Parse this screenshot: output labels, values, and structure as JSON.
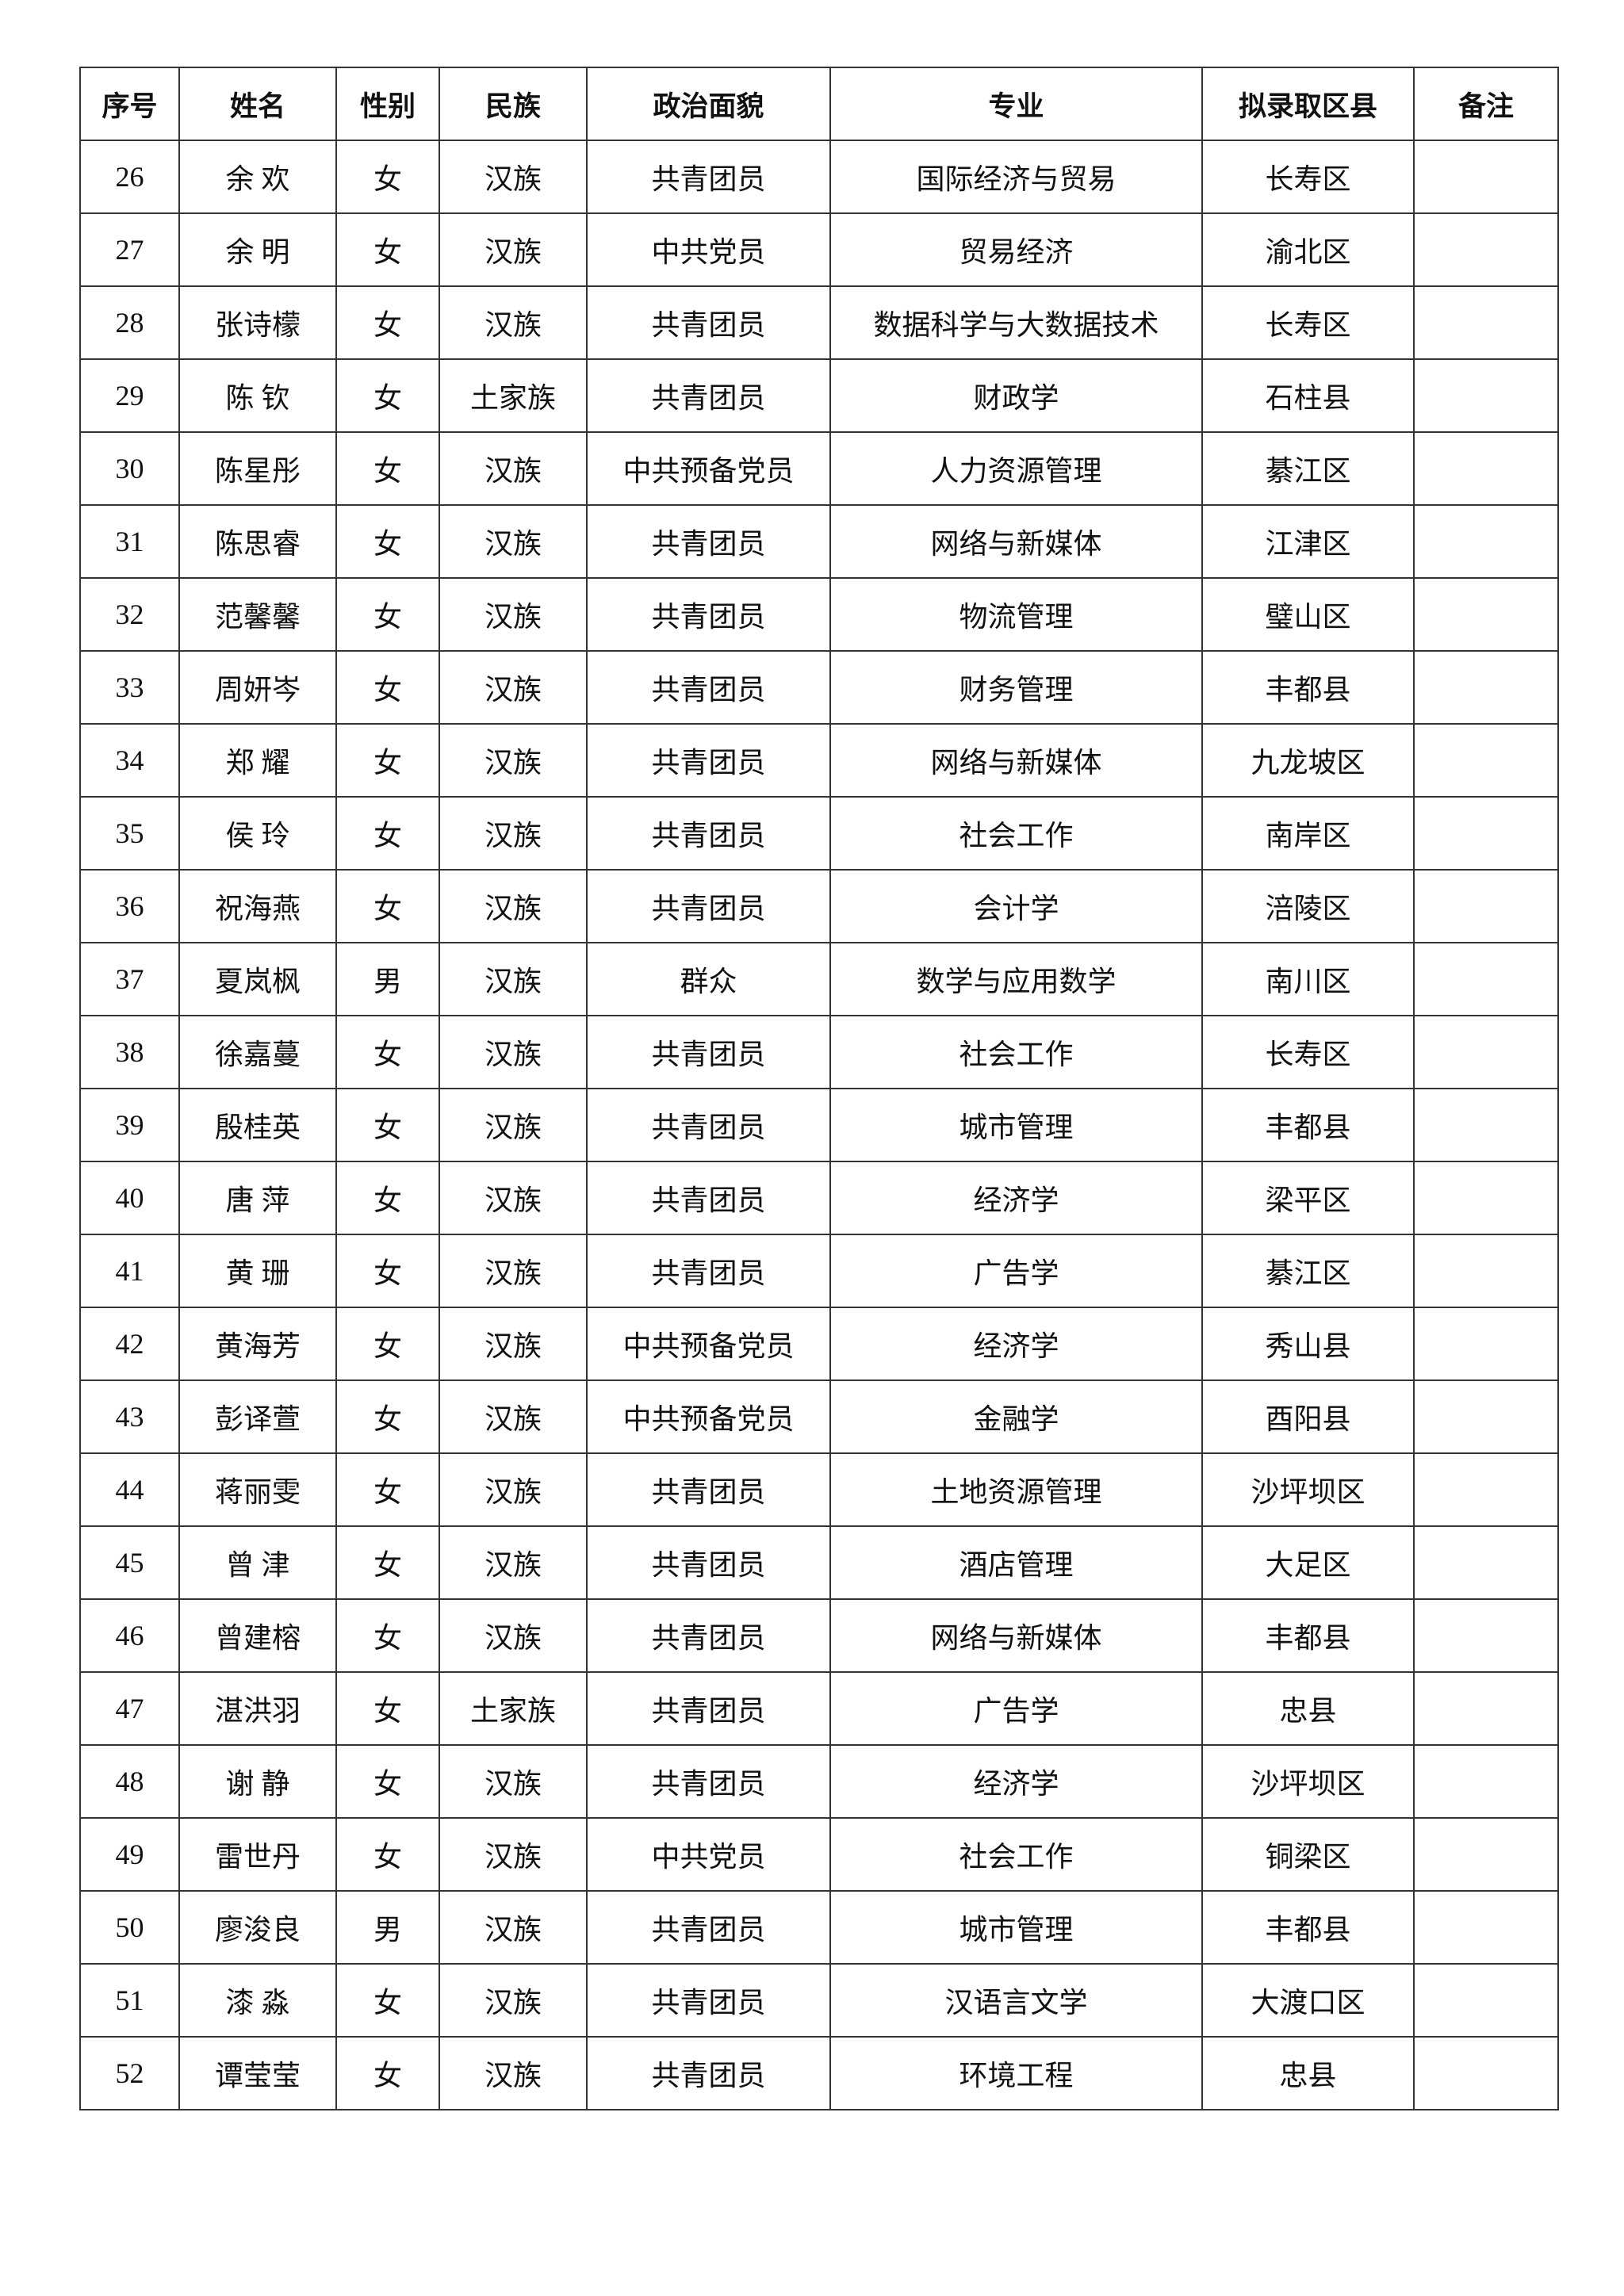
{
  "table": {
    "headers": [
      "序号",
      "姓名",
      "性别",
      "民族",
      "政治面貌",
      "专业",
      "拟录取区县",
      "备注"
    ],
    "rows": [
      [
        "26",
        "余 欢",
        "女",
        "汉族",
        "共青团员",
        "国际经济与贸易",
        "长寿区",
        ""
      ],
      [
        "27",
        "余 明",
        "女",
        "汉族",
        "中共党员",
        "贸易经济",
        "渝北区",
        ""
      ],
      [
        "28",
        "张诗檬",
        "女",
        "汉族",
        "共青团员",
        "数据科学与大数据技术",
        "长寿区",
        ""
      ],
      [
        "29",
        "陈 钦",
        "女",
        "土家族",
        "共青团员",
        "财政学",
        "石柱县",
        ""
      ],
      [
        "30",
        "陈星彤",
        "女",
        "汉族",
        "中共预备党员",
        "人力资源管理",
        "綦江区",
        ""
      ],
      [
        "31",
        "陈思睿",
        "女",
        "汉族",
        "共青团员",
        "网络与新媒体",
        "江津区",
        ""
      ],
      [
        "32",
        "范馨馨",
        "女",
        "汉族",
        "共青团员",
        "物流管理",
        "璧山区",
        ""
      ],
      [
        "33",
        "周妍岑",
        "女",
        "汉族",
        "共青团员",
        "财务管理",
        "丰都县",
        ""
      ],
      [
        "34",
        "郑 耀",
        "女",
        "汉族",
        "共青团员",
        "网络与新媒体",
        "九龙坡区",
        ""
      ],
      [
        "35",
        "侯 玲",
        "女",
        "汉族",
        "共青团员",
        "社会工作",
        "南岸区",
        ""
      ],
      [
        "36",
        "祝海燕",
        "女",
        "汉族",
        "共青团员",
        "会计学",
        "涪陵区",
        ""
      ],
      [
        "37",
        "夏岚枫",
        "男",
        "汉族",
        "群众",
        "数学与应用数学",
        "南川区",
        ""
      ],
      [
        "38",
        "徐嘉蔓",
        "女",
        "汉族",
        "共青团员",
        "社会工作",
        "长寿区",
        ""
      ],
      [
        "39",
        "殷桂英",
        "女",
        "汉族",
        "共青团员",
        "城市管理",
        "丰都县",
        ""
      ],
      [
        "40",
        "唐 萍",
        "女",
        "汉族",
        "共青团员",
        "经济学",
        "梁平区",
        ""
      ],
      [
        "41",
        "黄 珊",
        "女",
        "汉族",
        "共青团员",
        "广告学",
        "綦江区",
        ""
      ],
      [
        "42",
        "黄海芳",
        "女",
        "汉族",
        "中共预备党员",
        "经济学",
        "秀山县",
        ""
      ],
      [
        "43",
        "彭译萱",
        "女",
        "汉族",
        "中共预备党员",
        "金融学",
        "酉阳县",
        ""
      ],
      [
        "44",
        "蒋丽雯",
        "女",
        "汉族",
        "共青团员",
        "土地资源管理",
        "沙坪坝区",
        ""
      ],
      [
        "45",
        "曾 津",
        "女",
        "汉族",
        "共青团员",
        "酒店管理",
        "大足区",
        ""
      ],
      [
        "46",
        "曾建榕",
        "女",
        "汉族",
        "共青团员",
        "网络与新媒体",
        "丰都县",
        ""
      ],
      [
        "47",
        "湛洪羽",
        "女",
        "土家族",
        "共青团员",
        "广告学",
        "忠县",
        ""
      ],
      [
        "48",
        "谢 静",
        "女",
        "汉族",
        "共青团员",
        "经济学",
        "沙坪坝区",
        ""
      ],
      [
        "49",
        "雷世丹",
        "女",
        "汉族",
        "中共党员",
        "社会工作",
        "铜梁区",
        ""
      ],
      [
        "50",
        "廖浚良",
        "男",
        "汉族",
        "共青团员",
        "城市管理",
        "丰都县",
        ""
      ],
      [
        "51",
        "漆 淼",
        "女",
        "汉族",
        "共青团员",
        "汉语言文学",
        "大渡口区",
        ""
      ],
      [
        "52",
        "谭莹莹",
        "女",
        "汉族",
        "共青团员",
        "环境工程",
        "忠县",
        ""
      ]
    ]
  }
}
